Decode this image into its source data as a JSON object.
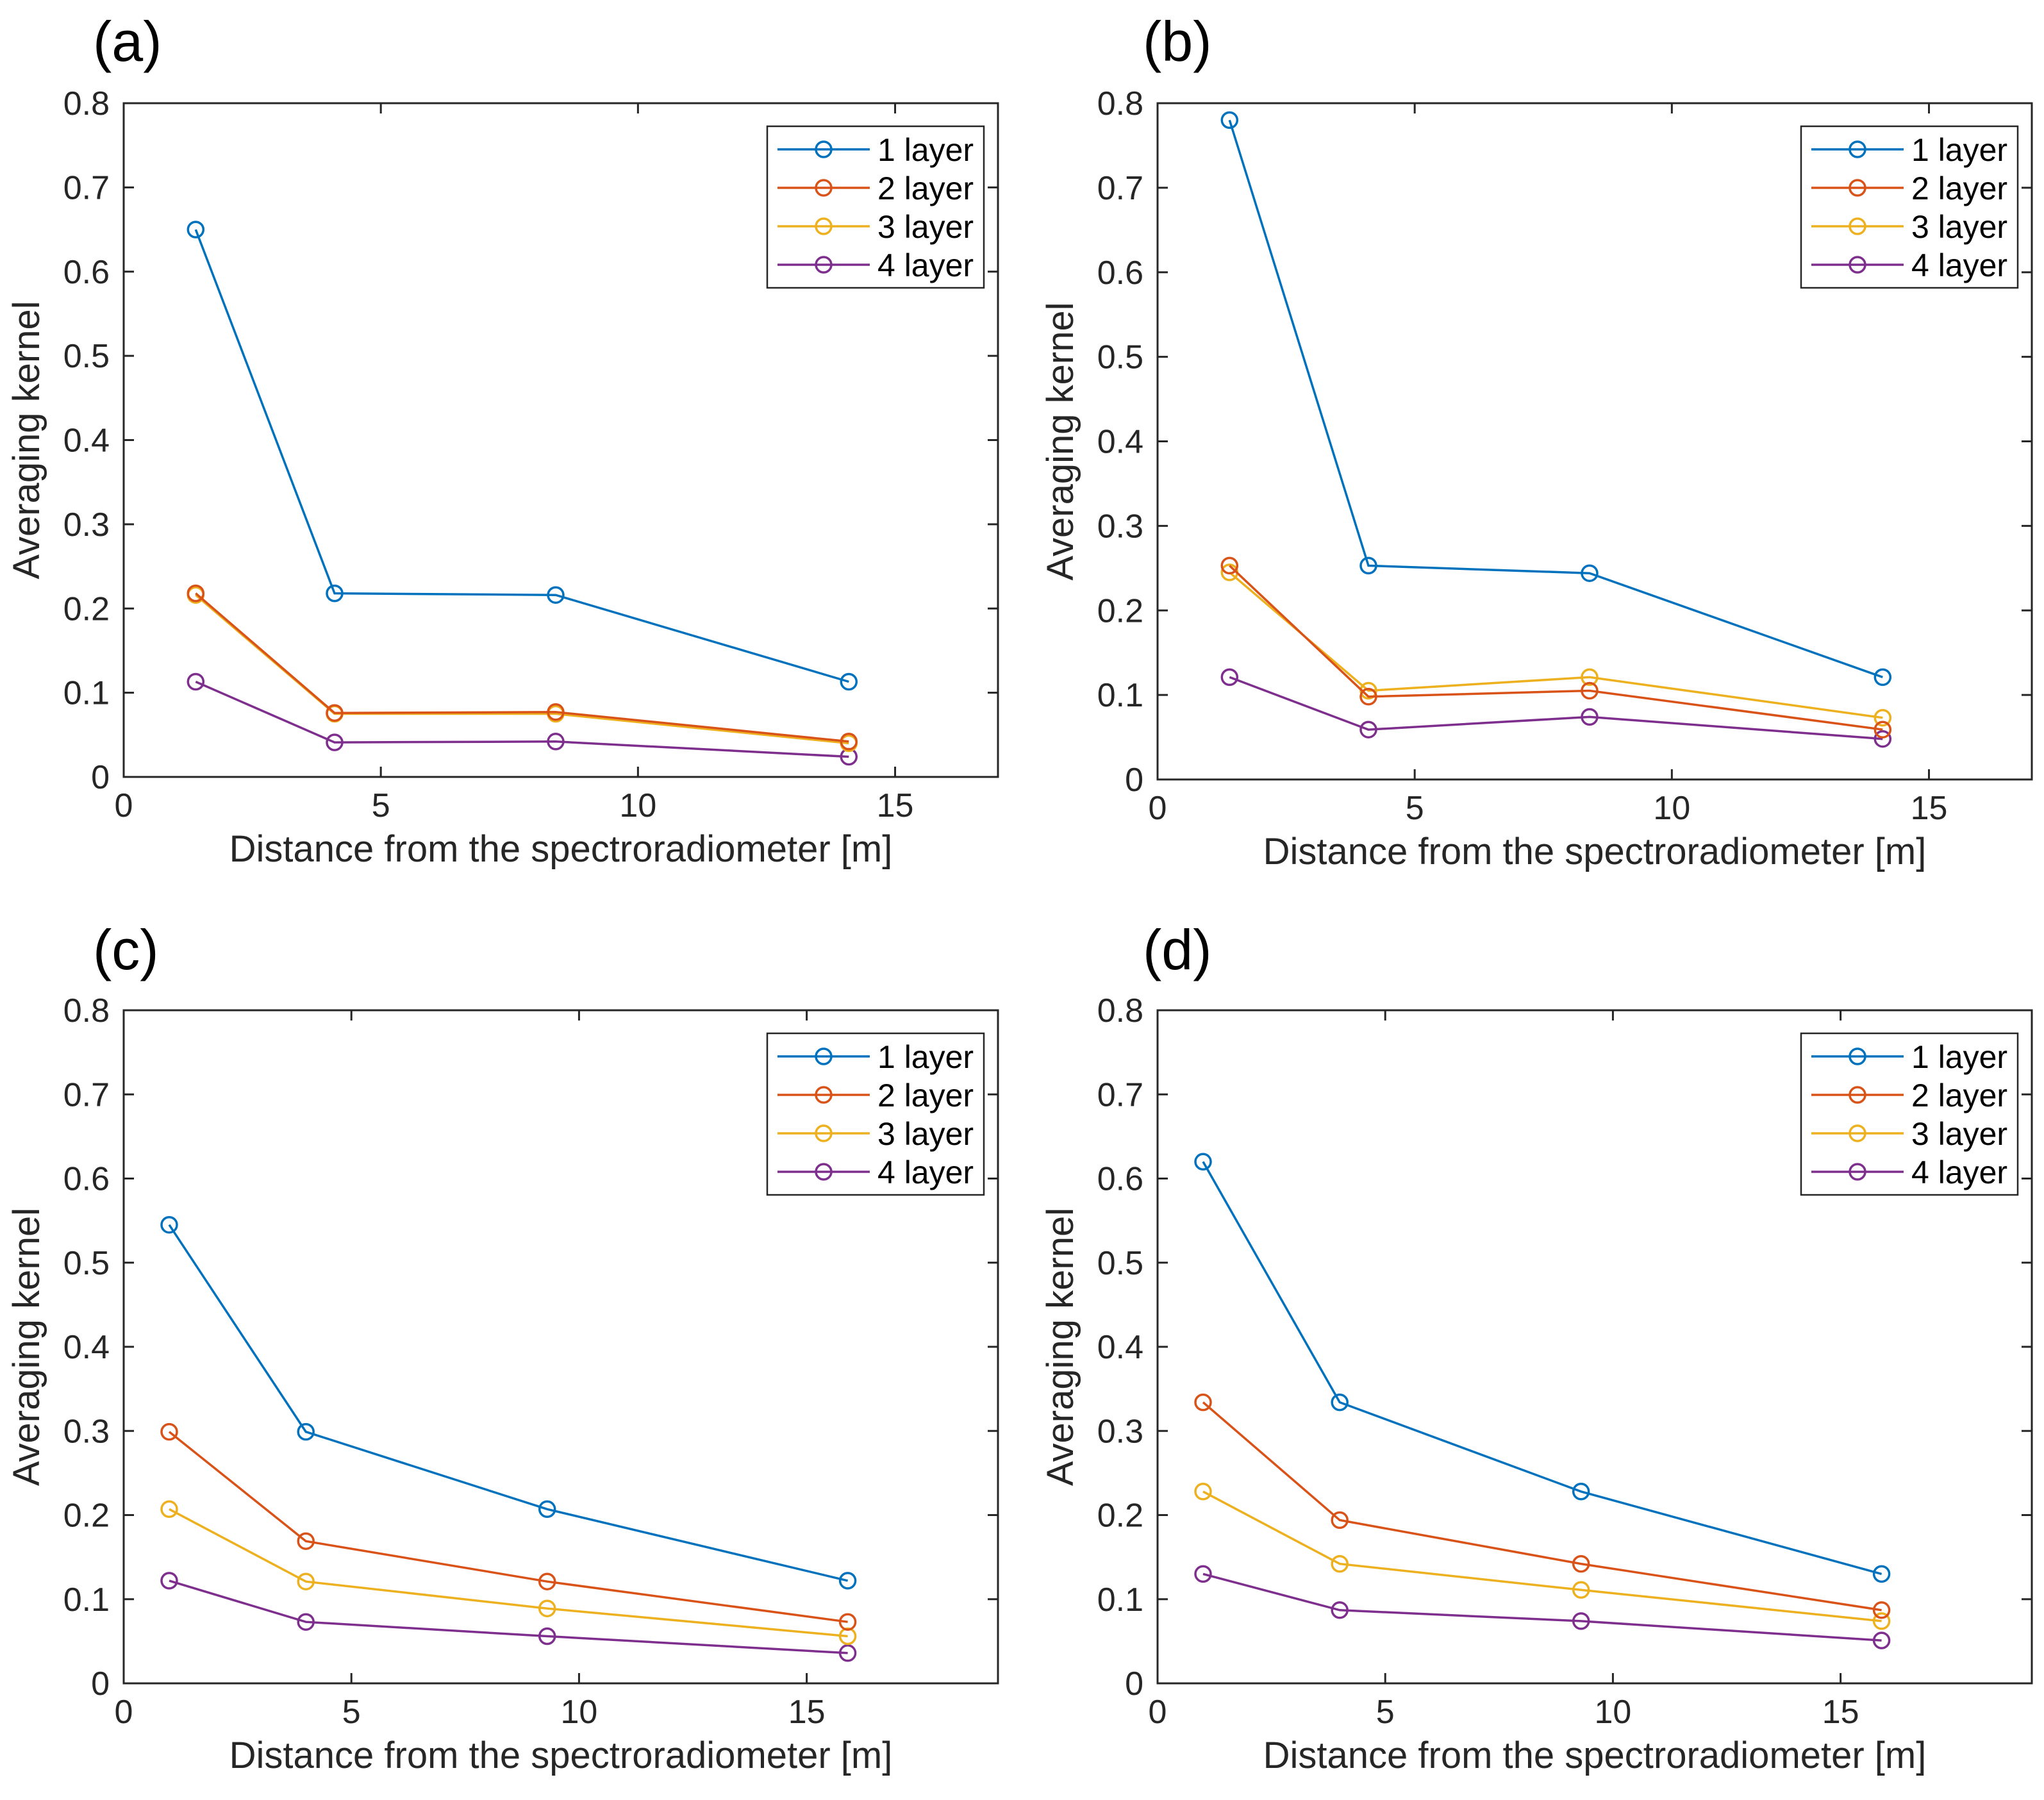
{
  "chart_data": [
    {
      "type": "line",
      "panel_label": "(a)",
      "xlabel": "Distance from the spectroradiometer [m]",
      "ylabel": "Averaging kernel",
      "xlim": [
        0,
        17
      ],
      "ylim": [
        0,
        0.8
      ],
      "xticks": [
        0,
        5,
        10,
        15
      ],
      "yticks": [
        0,
        0.1,
        0.2,
        0.3,
        0.4,
        0.5,
        0.6,
        0.7,
        0.8
      ],
      "grid": false,
      "legend": "top-right",
      "marker": "circle",
      "x": [
        1.4,
        4.1,
        8.4,
        14.1
      ],
      "series": [
        {
          "name": "1 layer",
          "color": "#0072BD",
          "values": [
            0.65,
            0.218,
            0.216,
            0.113
          ]
        },
        {
          "name": "2 layer",
          "color": "#D95319",
          "values": [
            0.218,
            0.076,
            0.077,
            0.042
          ]
        },
        {
          "name": "3 layer",
          "color": "#EDB120",
          "values": [
            0.216,
            0.075,
            0.075,
            0.04
          ]
        },
        {
          "name": "4 layer",
          "color": "#7E2F8E",
          "values": [
            0.113,
            0.041,
            0.042,
            0.024
          ]
        }
      ]
    },
    {
      "type": "line",
      "panel_label": "(b)",
      "xlabel": "Distance from the spectroradiometer [m]",
      "ylabel": "Averaging kernel",
      "xlim": [
        0,
        17
      ],
      "ylim": [
        0,
        0.8
      ],
      "xticks": [
        0,
        5,
        10,
        15
      ],
      "yticks": [
        0,
        0.1,
        0.2,
        0.3,
        0.4,
        0.5,
        0.6,
        0.7,
        0.8
      ],
      "grid": false,
      "legend": "top-right",
      "marker": "circle",
      "x": [
        1.4,
        4.1,
        8.4,
        14.1
      ],
      "series": [
        {
          "name": "1 layer",
          "color": "#0072BD",
          "values": [
            0.78,
            0.253,
            0.244,
            0.121
          ]
        },
        {
          "name": "2 layer",
          "color": "#D95319",
          "values": [
            0.253,
            0.098,
            0.105,
            0.059
          ]
        },
        {
          "name": "3 layer",
          "color": "#EDB120",
          "values": [
            0.245,
            0.105,
            0.121,
            0.073
          ]
        },
        {
          "name": "4 layer",
          "color": "#7E2F8E",
          "values": [
            0.121,
            0.059,
            0.074,
            0.048
          ]
        }
      ]
    },
    {
      "type": "line",
      "panel_label": "(c)",
      "xlabel": "Distance from the spectroradiometer [m]",
      "ylabel": "Averaging kernel",
      "xlim": [
        0,
        19.2
      ],
      "ylim": [
        0,
        0.8
      ],
      "xticks": [
        0,
        5,
        10,
        15
      ],
      "yticks": [
        0,
        0.1,
        0.2,
        0.3,
        0.4,
        0.5,
        0.6,
        0.7,
        0.8
      ],
      "grid": false,
      "legend": "top-right",
      "marker": "circle",
      "x": [
        1.0,
        4.0,
        9.3,
        15.9
      ],
      "series": [
        {
          "name": "1 layer",
          "color": "#0072BD",
          "values": [
            0.545,
            0.299,
            0.207,
            0.122
          ]
        },
        {
          "name": "2 layer",
          "color": "#D95319",
          "values": [
            0.299,
            0.169,
            0.121,
            0.073
          ]
        },
        {
          "name": "3 layer",
          "color": "#EDB120",
          "values": [
            0.207,
            0.121,
            0.089,
            0.056
          ]
        },
        {
          "name": "4 layer",
          "color": "#7E2F8E",
          "values": [
            0.122,
            0.073,
            0.056,
            0.036
          ]
        }
      ]
    },
    {
      "type": "line",
      "panel_label": "(d)",
      "xlabel": "Distance from the spectroradiometer [m]",
      "ylabel": "Averaging kernel",
      "xlim": [
        0,
        19.2
      ],
      "ylim": [
        0,
        0.8
      ],
      "xticks": [
        0,
        5,
        10,
        15
      ],
      "yticks": [
        0,
        0.1,
        0.2,
        0.3,
        0.4,
        0.5,
        0.6,
        0.7,
        0.8
      ],
      "grid": false,
      "legend": "top-right",
      "marker": "circle",
      "x": [
        1.0,
        4.0,
        9.3,
        15.9
      ],
      "series": [
        {
          "name": "1 layer",
          "color": "#0072BD",
          "values": [
            0.62,
            0.334,
            0.228,
            0.13
          ]
        },
        {
          "name": "2 layer",
          "color": "#D95319",
          "values": [
            0.334,
            0.194,
            0.142,
            0.087
          ]
        },
        {
          "name": "3 layer",
          "color": "#EDB120",
          "values": [
            0.228,
            0.142,
            0.111,
            0.074
          ]
        },
        {
          "name": "4 layer",
          "color": "#7E2F8E",
          "values": [
            0.13,
            0.087,
            0.074,
            0.051
          ]
        }
      ]
    }
  ]
}
